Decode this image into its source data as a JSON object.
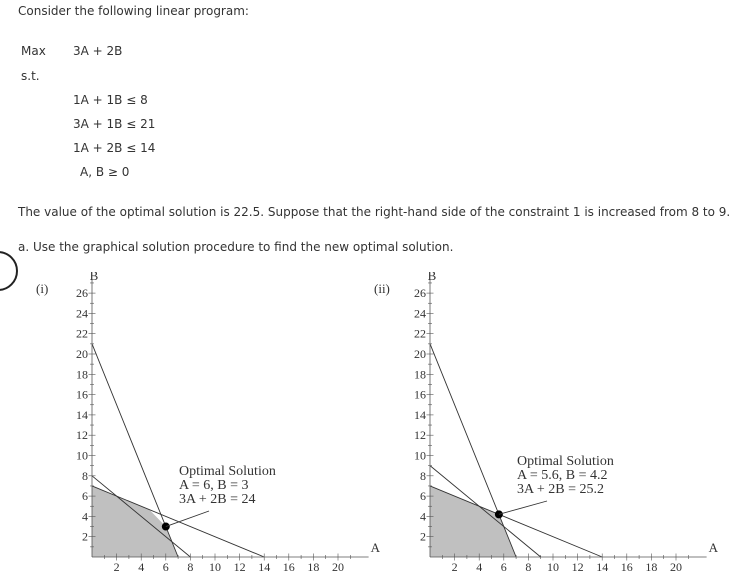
{
  "intro": "Consider the following linear program:",
  "objective": {
    "label": "Max",
    "expr": "3A + 2B"
  },
  "subject_to": "s.t.",
  "constraints": [
    "1A + 1B ≤ 8",
    "3A + 1B ≤ 21",
    "1A + 2B ≤ 14",
    "A, B ≥ 0"
  ],
  "statement": "The value of the optimal solution is 22.5. Suppose that the right-hand side of the constraint 1 is increased from 8 to 9.",
  "question": "a. Use the graphical solution procedure to find the new optimal solution.",
  "options": [
    {
      "label": "(i)",
      "annotation": [
        "Optimal Solution",
        "A = 6, B = 3",
        "3A + 2B = 24"
      ],
      "optimal_point": {
        "A": 6,
        "B": 3
      },
      "feasible_region": [
        [
          0,
          0
        ],
        [
          0,
          7
        ],
        [
          4.67,
          4.67
        ],
        [
          6,
          3
        ],
        [
          7,
          0
        ]
      ],
      "lines": [
        {
          "from": [
            0,
            21
          ],
          "to": [
            7,
            0
          ]
        },
        {
          "from": [
            0,
            7
          ],
          "to": [
            14,
            0
          ]
        },
        {
          "from": [
            0,
            8
          ],
          "to": [
            8,
            0
          ]
        }
      ]
    },
    {
      "label": "(ii)",
      "annotation": [
        "Optimal Solution",
        "A = 5.6, B = 4.2",
        "3A + 2B = 25.2"
      ],
      "optimal_point": {
        "A": 5.6,
        "B": 4.2
      },
      "feasible_region": [
        [
          0,
          0
        ],
        [
          0,
          7
        ],
        [
          4,
          5
        ],
        [
          5.6,
          4.2
        ],
        [
          7,
          0
        ]
      ],
      "lines": [
        {
          "from": [
            0,
            21
          ],
          "to": [
            7,
            0
          ]
        },
        {
          "from": [
            0,
            7
          ],
          "to": [
            14,
            0
          ]
        },
        {
          "from": [
            0,
            9
          ],
          "to": [
            9,
            0
          ]
        }
      ]
    }
  ],
  "chart_data": [
    {
      "type": "line",
      "title": "(i)",
      "xlabel": "A",
      "ylabel": "B",
      "xlim": [
        0,
        22
      ],
      "ylim": [
        0,
        27
      ],
      "xticks": [
        "2",
        "4",
        "6",
        "8",
        "10",
        "12",
        "14",
        "16",
        "18",
        "20"
      ],
      "yticks": [
        "2",
        "4",
        "6",
        "8",
        "10",
        "12",
        "14",
        "16",
        "18",
        "20",
        "22",
        "24",
        "26"
      ]
    },
    {
      "type": "line",
      "title": "(ii)",
      "xlabel": "A",
      "ylabel": "B",
      "xlim": [
        0,
        22
      ],
      "ylim": [
        0,
        27
      ],
      "xticks": [
        "2",
        "4",
        "6",
        "8",
        "10",
        "12",
        "14",
        "16",
        "18",
        "20"
      ],
      "yticks": [
        "2",
        "4",
        "6",
        "8",
        "10",
        "12",
        "14",
        "16",
        "18",
        "20",
        "22",
        "24",
        "26"
      ]
    }
  ]
}
